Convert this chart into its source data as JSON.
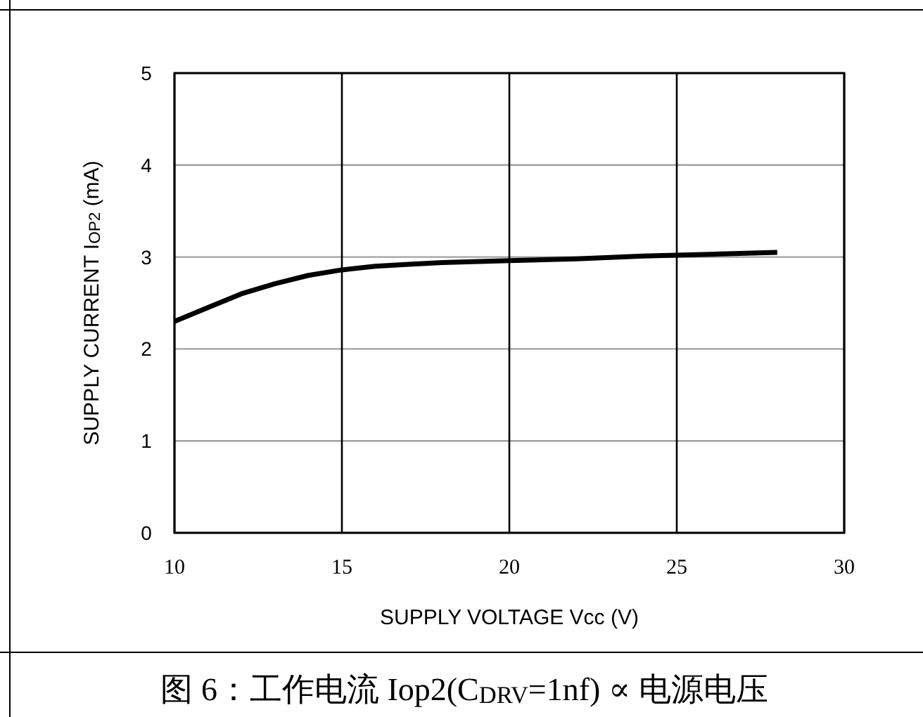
{
  "chart_data": {
    "type": "line",
    "xlabel": "SUPPLY VOLTAGE Vcc (V)",
    "ylabel": "SUPPLY CURRENT I$_{OP2}$ (mA)",
    "annotations": [
      "图 6：工作电流 Iop2(C$_{DRV}$=1nf) ∝ 电源电压"
    ],
    "x": [
      10,
      11,
      12,
      13,
      14,
      15,
      16,
      17,
      18,
      20,
      22,
      24,
      25,
      26,
      28
    ],
    "series": [
      {
        "color": "#000000",
        "values": [
          2.3,
          2.45,
          2.6,
          2.71,
          2.8,
          2.86,
          2.9,
          2.92,
          2.94,
          2.96,
          2.98,
          3.01,
          3.02,
          3.03,
          3.05
        ]
      }
    ],
    "xlim": [
      10,
      30
    ],
    "xticks": [
      10,
      15,
      20,
      25,
      30
    ],
    "ylim": [
      0,
      5
    ],
    "yticks": [
      0,
      1,
      2,
      3,
      4,
      5
    ],
    "grid": true,
    "marker": "none",
    "line_style": "solid"
  }
}
